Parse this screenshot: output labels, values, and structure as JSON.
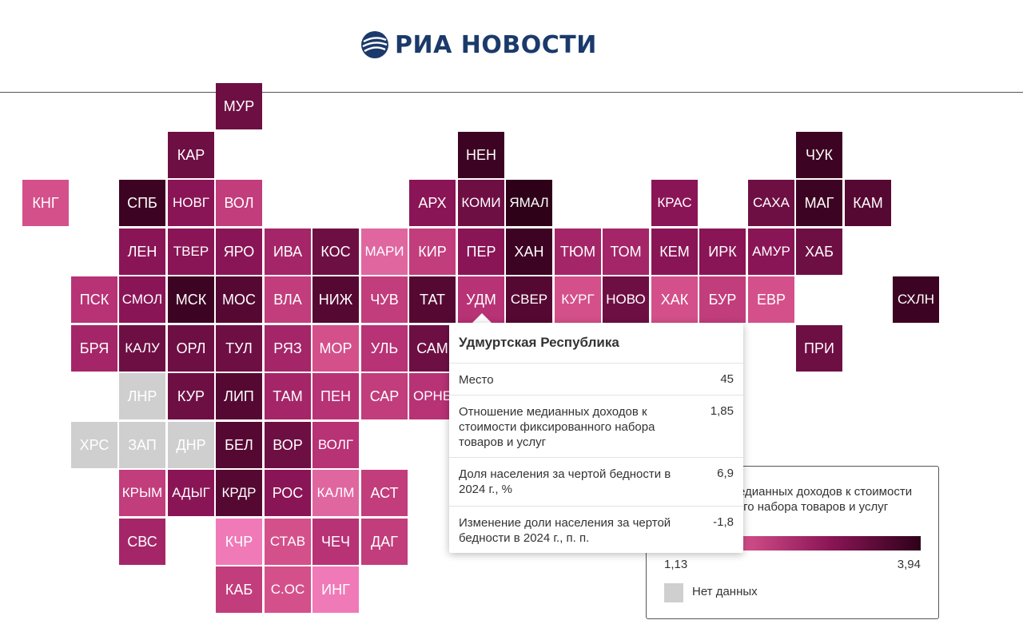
{
  "brand": {
    "name": "РИА НОВОСТИ",
    "primary_color": "#1b3a6b"
  },
  "map": {
    "no_data_color": "#cfcfcf",
    "tiles": [
      {
        "code": "МУР",
        "color": "#6e0f44",
        "col": 4,
        "row": 0
      },
      {
        "code": "КАР",
        "color": "#6e0f44",
        "col": 3,
        "row": 1
      },
      {
        "code": "НЕН",
        "color": "#3d0322",
        "col": 9,
        "row": 1
      },
      {
        "code": "ЧУК",
        "color": "#3d0322",
        "col": 16,
        "row": 1
      },
      {
        "code": "КНГ",
        "color": "#d4508a",
        "col": 0,
        "row": 2
      },
      {
        "code": "СПБ",
        "color": "#3d0322",
        "col": 2,
        "row": 2
      },
      {
        "code": "НОВГ",
        "color": "#8a1556",
        "col": 3,
        "row": 2
      },
      {
        "code": "ВОЛ",
        "color": "#c23d7c",
        "col": 4,
        "row": 2
      },
      {
        "code": "АРХ",
        "color": "#8a1556",
        "col": 8,
        "row": 2
      },
      {
        "code": "КОМИ",
        "color": "#6e0f44",
        "col": 9,
        "row": 2
      },
      {
        "code": "ЯМАЛ",
        "color": "#2e0119",
        "col": 10,
        "row": 2
      },
      {
        "code": "КРАС",
        "color": "#8a1556",
        "col": 13,
        "row": 2
      },
      {
        "code": "САХА",
        "color": "#6e0f44",
        "col": 15,
        "row": 2
      },
      {
        "code": "МАГ",
        "color": "#3d0322",
        "col": 16,
        "row": 2
      },
      {
        "code": "КАМ",
        "color": "#550932",
        "col": 17,
        "row": 2
      },
      {
        "code": "ЛЕН",
        "color": "#8a1556",
        "col": 2,
        "row": 3
      },
      {
        "code": "ТВЕР",
        "color": "#8a1556",
        "col": 3,
        "row": 3
      },
      {
        "code": "ЯРО",
        "color": "#8a1556",
        "col": 4,
        "row": 3
      },
      {
        "code": "ИВА",
        "color": "#a42668",
        "col": 5,
        "row": 3
      },
      {
        "code": "КОС",
        "color": "#6e0f44",
        "col": 6,
        "row": 3
      },
      {
        "code": "МАРИ",
        "color": "#e066a0",
        "col": 7,
        "row": 3
      },
      {
        "code": "КИР",
        "color": "#c23d7c",
        "col": 8,
        "row": 3
      },
      {
        "code": "ПЕР",
        "color": "#8a1556",
        "col": 9,
        "row": 3
      },
      {
        "code": "ХАН",
        "color": "#3d0322",
        "col": 10,
        "row": 3
      },
      {
        "code": "ТЮМ",
        "color": "#a42668",
        "col": 11,
        "row": 3
      },
      {
        "code": "ТОМ",
        "color": "#a42668",
        "col": 12,
        "row": 3
      },
      {
        "code": "КЕМ",
        "color": "#8a1556",
        "col": 13,
        "row": 3
      },
      {
        "code": "ИРК",
        "color": "#8a1556",
        "col": 14,
        "row": 3
      },
      {
        "code": "АМУР",
        "color": "#8a1556",
        "col": 15,
        "row": 3
      },
      {
        "code": "ХАБ",
        "color": "#6e0f44",
        "col": 16,
        "row": 3
      },
      {
        "code": "ПСК",
        "color": "#b83276",
        "col": 1,
        "row": 4
      },
      {
        "code": "СМОЛ",
        "color": "#8a1556",
        "col": 2,
        "row": 4
      },
      {
        "code": "МСК",
        "color": "#3d0322",
        "col": 3,
        "row": 4
      },
      {
        "code": "МОС",
        "color": "#550932",
        "col": 4,
        "row": 4
      },
      {
        "code": "ВЛА",
        "color": "#c23d7c",
        "col": 5,
        "row": 4
      },
      {
        "code": "НИЖ",
        "color": "#550932",
        "col": 6,
        "row": 4
      },
      {
        "code": "ЧУВ",
        "color": "#c23d7c",
        "col": 7,
        "row": 4
      },
      {
        "code": "ТАТ",
        "color": "#550932",
        "col": 8,
        "row": 4
      },
      {
        "code": "УДМ",
        "color": "#b83276",
        "col": 9,
        "row": 4
      },
      {
        "code": "СВЕР",
        "color": "#550932",
        "col": 10,
        "row": 4
      },
      {
        "code": "КУРГ",
        "color": "#d4508a",
        "col": 11,
        "row": 4
      },
      {
        "code": "НОВО",
        "color": "#6e0f44",
        "col": 12,
        "row": 4
      },
      {
        "code": "ХАК",
        "color": "#d4508a",
        "col": 13,
        "row": 4
      },
      {
        "code": "БУР",
        "color": "#c23d7c",
        "col": 14,
        "row": 4
      },
      {
        "code": "ЕВР",
        "color": "#d4508a",
        "col": 15,
        "row": 4
      },
      {
        "code": "СХЛН",
        "color": "#3d0322",
        "col": 18,
        "row": 4
      },
      {
        "code": "БРЯ",
        "color": "#a42668",
        "col": 1,
        "row": 5
      },
      {
        "code": "КАЛУ",
        "color": "#6e0f44",
        "col": 2,
        "row": 5
      },
      {
        "code": "ОРЛ",
        "color": "#6e0f44",
        "col": 3,
        "row": 5
      },
      {
        "code": "ТУЛ",
        "color": "#6e0f44",
        "col": 4,
        "row": 5
      },
      {
        "code": "РЯЗ",
        "color": "#a42668",
        "col": 5,
        "row": 5
      },
      {
        "code": "МОР",
        "color": "#d4508a",
        "col": 6,
        "row": 5
      },
      {
        "code": "УЛЬ",
        "color": "#b83276",
        "col": 7,
        "row": 5
      },
      {
        "code": "САМ",
        "color": "#6e0f44",
        "col": 8,
        "row": 5
      },
      {
        "code": "ПРИ",
        "color": "#6e0f44",
        "col": 16,
        "row": 5
      },
      {
        "code": "ЛНР",
        "color": "#cfcfcf",
        "col": 2,
        "row": 6
      },
      {
        "code": "КУР",
        "color": "#6e0f44",
        "col": 3,
        "row": 6
      },
      {
        "code": "ЛИП",
        "color": "#550932",
        "col": 4,
        "row": 6
      },
      {
        "code": "ТАМ",
        "color": "#a42668",
        "col": 5,
        "row": 6
      },
      {
        "code": "ПЕН",
        "color": "#b83276",
        "col": 6,
        "row": 6
      },
      {
        "code": "САР",
        "color": "#c23d7c",
        "col": 7,
        "row": 6
      },
      {
        "code": "ОРНБ",
        "color": "#b83276",
        "col": 8,
        "row": 6
      },
      {
        "code": "ХРС",
        "color": "#cfcfcf",
        "col": 1,
        "row": 7
      },
      {
        "code": "ЗАП",
        "color": "#cfcfcf",
        "col": 2,
        "row": 7
      },
      {
        "code": "ДНР",
        "color": "#cfcfcf",
        "col": 3,
        "row": 7
      },
      {
        "code": "БЕЛ",
        "color": "#550932",
        "col": 4,
        "row": 7
      },
      {
        "code": "ВОР",
        "color": "#6e0f44",
        "col": 5,
        "row": 7
      },
      {
        "code": "ВОЛГ",
        "color": "#b83276",
        "col": 6,
        "row": 7
      },
      {
        "code": "КРЫМ",
        "color": "#c23d7c",
        "col": 2,
        "row": 8
      },
      {
        "code": "АДЫГ",
        "color": "#8a1556",
        "col": 3,
        "row": 8
      },
      {
        "code": "КРДР",
        "color": "#550932",
        "col": 4,
        "row": 8
      },
      {
        "code": "РОС",
        "color": "#8a1556",
        "col": 5,
        "row": 8
      },
      {
        "code": "КАЛМ",
        "color": "#e066a0",
        "col": 6,
        "row": 8
      },
      {
        "code": "АСТ",
        "color": "#c23d7c",
        "col": 7,
        "row": 8
      },
      {
        "code": "СВС",
        "color": "#a42668",
        "col": 2,
        "row": 9
      },
      {
        "code": "КЧР",
        "color": "#f07ab8",
        "col": 4,
        "row": 9
      },
      {
        "code": "СТАВ",
        "color": "#d4508a",
        "col": 5,
        "row": 9
      },
      {
        "code": "ЧЕЧ",
        "color": "#b83276",
        "col": 6,
        "row": 9
      },
      {
        "code": "ДАГ",
        "color": "#c23d7c",
        "col": 7,
        "row": 9
      },
      {
        "code": "КАБ",
        "color": "#c23d7c",
        "col": 4,
        "row": 10
      },
      {
        "code": "С.ОС",
        "color": "#d4508a",
        "col": 5,
        "row": 10
      },
      {
        "code": "ИНГ",
        "color": "#f07ab8",
        "col": 6,
        "row": 10
      }
    ]
  },
  "legend": {
    "title": "Отношение медианных доходов к стоимости фиксированного набора товаров и услуг",
    "min": "1,13",
    "max": "3,94",
    "no_data_label": "Нет данных"
  },
  "tooltip": {
    "region": "Удмуртская Республика",
    "rows": [
      {
        "label": "Место",
        "value": "45"
      },
      {
        "label": "Отношение медианных доходов к стоимости фиксированного набора товаров и услуг",
        "value": "1,85"
      },
      {
        "label": "Доля населения за чертой бедности в 2024 г., %",
        "value": "6,9"
      },
      {
        "label": "Изменение доли населения за чертой бедности в 2024 г., п. п.",
        "value": "-1,8"
      }
    ]
  }
}
